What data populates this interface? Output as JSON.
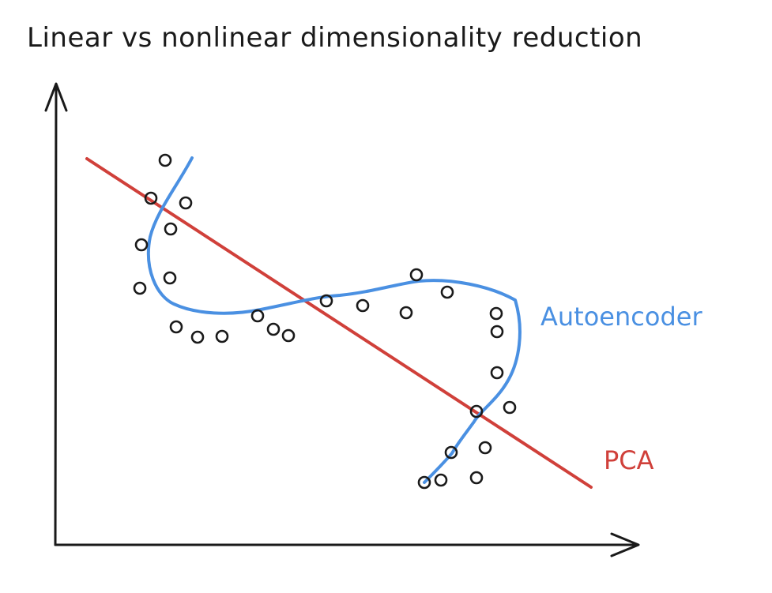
{
  "title": "Linear vs nonlinear dimensionality reduction",
  "labels": {
    "autoencoder": "Autoencoder",
    "pca": "PCA"
  },
  "colors": {
    "ink": "#1a1a1a",
    "autoencoder": "#4a90e2",
    "pca": "#d0403a"
  }
}
